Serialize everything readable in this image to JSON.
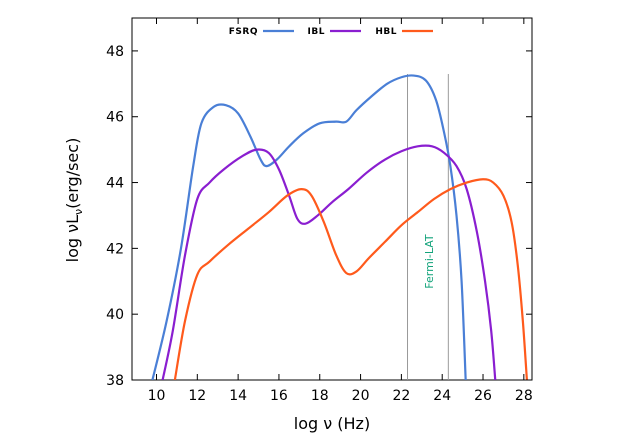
{
  "chart_data": {
    "type": "line",
    "title": "",
    "xlabel": "log ν (Hz)",
    "ylabel_main": "log νL",
    "ylabel_sub": "ν",
    "ylabel_tail": "(erg/sec)",
    "xlim": [
      8.8,
      28.4
    ],
    "ylim": [
      38,
      49
    ],
    "xticks": [
      10,
      12,
      14,
      16,
      18,
      20,
      22,
      24,
      26,
      28
    ],
    "yticks": [
      38,
      40,
      42,
      44,
      46,
      48
    ],
    "legend_position": "top",
    "grid": false,
    "series": [
      {
        "name": "FSRQ",
        "color": "#4a7fd6",
        "points": [
          [
            9.8,
            38
          ],
          [
            10.5,
            39.8
          ],
          [
            11.2,
            42
          ],
          [
            11.8,
            44.5
          ],
          [
            12.2,
            45.8
          ],
          [
            12.8,
            46.3
          ],
          [
            13.4,
            46.35
          ],
          [
            14.0,
            46.1
          ],
          [
            14.6,
            45.4
          ],
          [
            15.1,
            44.7
          ],
          [
            15.4,
            44.5
          ],
          [
            15.9,
            44.7
          ],
          [
            16.5,
            45.1
          ],
          [
            17.2,
            45.5
          ],
          [
            18.0,
            45.8
          ],
          [
            18.8,
            45.85
          ],
          [
            19.3,
            45.85
          ],
          [
            19.8,
            46.2
          ],
          [
            20.5,
            46.6
          ],
          [
            21.3,
            47.0
          ],
          [
            22.0,
            47.2
          ],
          [
            22.6,
            47.25
          ],
          [
            23.2,
            47.1
          ],
          [
            23.7,
            46.5
          ],
          [
            24.1,
            45.5
          ],
          [
            24.4,
            44.5
          ],
          [
            24.7,
            43.0
          ],
          [
            24.95,
            41.0
          ],
          [
            25.15,
            38
          ]
        ]
      },
      {
        "name": "IBL",
        "color": "#8a1ed0",
        "points": [
          [
            10.3,
            38
          ],
          [
            10.8,
            39.5
          ],
          [
            11.4,
            41.8
          ],
          [
            12.0,
            43.5
          ],
          [
            12.6,
            44.0
          ],
          [
            13.3,
            44.4
          ],
          [
            14.2,
            44.8
          ],
          [
            14.9,
            45.0
          ],
          [
            15.5,
            44.9
          ],
          [
            16.0,
            44.4
          ],
          [
            16.5,
            43.6
          ],
          [
            16.9,
            42.9
          ],
          [
            17.3,
            42.75
          ],
          [
            17.9,
            43.0
          ],
          [
            18.6,
            43.4
          ],
          [
            19.4,
            43.8
          ],
          [
            20.3,
            44.3
          ],
          [
            21.2,
            44.7
          ],
          [
            22.0,
            44.95
          ],
          [
            22.8,
            45.1
          ],
          [
            23.5,
            45.1
          ],
          [
            24.1,
            44.9
          ],
          [
            24.7,
            44.5
          ],
          [
            25.2,
            43.8
          ],
          [
            25.7,
            42.5
          ],
          [
            26.1,
            41.0
          ],
          [
            26.4,
            39.5
          ],
          [
            26.6,
            38
          ]
        ]
      },
      {
        "name": "HBL",
        "color": "#ff5a1c",
        "points": [
          [
            10.9,
            38
          ],
          [
            11.4,
            39.8
          ],
          [
            12.0,
            41.2
          ],
          [
            12.6,
            41.6
          ],
          [
            13.5,
            42.1
          ],
          [
            14.5,
            42.6
          ],
          [
            15.5,
            43.1
          ],
          [
            16.4,
            43.6
          ],
          [
            17.1,
            43.8
          ],
          [
            17.6,
            43.6
          ],
          [
            18.2,
            42.8
          ],
          [
            18.8,
            41.8
          ],
          [
            19.3,
            41.25
          ],
          [
            19.8,
            41.3
          ],
          [
            20.4,
            41.7
          ],
          [
            21.2,
            42.2
          ],
          [
            22.0,
            42.7
          ],
          [
            22.8,
            43.1
          ],
          [
            23.6,
            43.5
          ],
          [
            24.4,
            43.8
          ],
          [
            25.2,
            44.0
          ],
          [
            26.0,
            44.1
          ],
          [
            26.5,
            44.0
          ],
          [
            27.0,
            43.6
          ],
          [
            27.4,
            42.8
          ],
          [
            27.7,
            41.5
          ],
          [
            27.95,
            39.8
          ],
          [
            28.15,
            38
          ]
        ]
      }
    ],
    "vertical_lines": [
      22.3,
      24.3
    ],
    "annotation": {
      "text": "Fermi-LAT",
      "x": 23.55,
      "y": 41.6
    }
  }
}
